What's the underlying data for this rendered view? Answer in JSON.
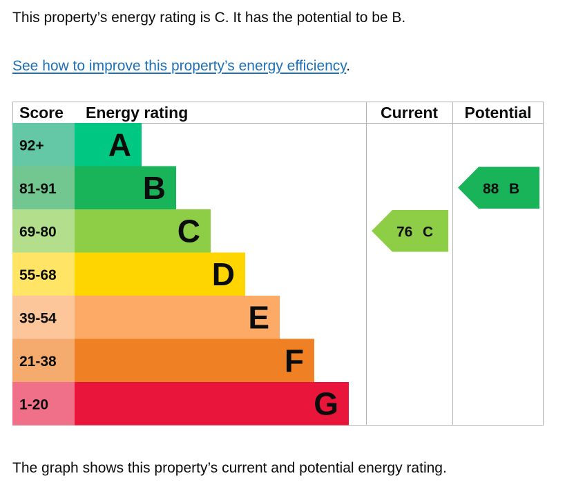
{
  "intro_text": "This property’s energy rating is C. It has the potential to be B.",
  "improve_link": {
    "label": "See how to improve this property’s energy efficiency",
    "suffix": "."
  },
  "table_headers": {
    "score": "Score",
    "rating": "Energy rating",
    "current": "Current",
    "potential": "Potential"
  },
  "bands": [
    {
      "score": "92+",
      "letter": "A",
      "color": "#00c781",
      "score_bg": "#64c7a5"
    },
    {
      "score": "81-91",
      "letter": "B",
      "color": "#19b459",
      "score_bg": "#72c790"
    },
    {
      "score": "69-80",
      "letter": "C",
      "color": "#8dce46",
      "score_bg": "#b3de8b"
    },
    {
      "score": "55-68",
      "letter": "D",
      "color": "#ffd500",
      "score_bg": "#ffe466"
    },
    {
      "score": "39-54",
      "letter": "E",
      "color": "#fcaa65",
      "score_bg": "#fdc69a"
    },
    {
      "score": "21-38",
      "letter": "F",
      "color": "#ef8023",
      "score_bg": "#f5ab6e"
    },
    {
      "score": "1-20",
      "letter": "G",
      "color": "#e9153b",
      "score_bg": "#f0708a"
    }
  ],
  "current": {
    "value": "76",
    "letter": "C",
    "color": "#8dce46"
  },
  "potential": {
    "value": "88",
    "letter": "B",
    "color": "#19b459"
  },
  "outro_text": "The graph shows this property’s current and potential energy rating."
}
